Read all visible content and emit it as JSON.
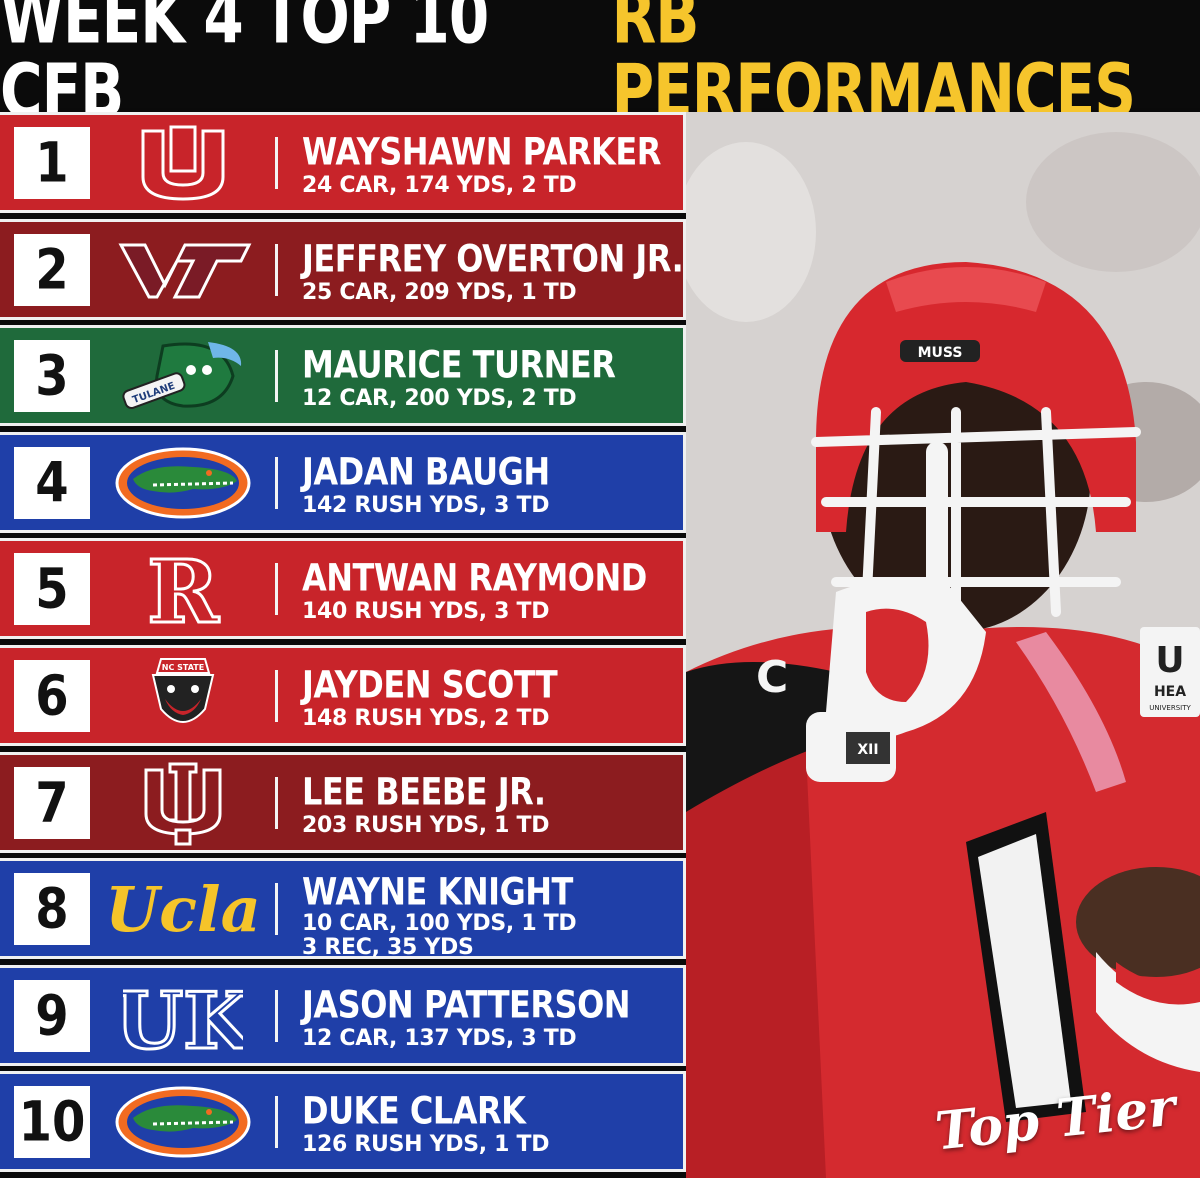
{
  "title": {
    "part1": "WEEK 4 TOP 10 CFB",
    "part2": "RB PERFORMANCES"
  },
  "colors": {
    "red": "#c8242a",
    "maroon": "#8c1c1f",
    "green": "#1f6a3b",
    "blue": "#1f3fa8",
    "gold": "#f6c52c"
  },
  "rows": [
    {
      "rank": "1",
      "logo": "utah-logo",
      "name": "WAYSHAWN PARKER",
      "stats": "24 CAR, 174 YDS, 2 TD",
      "color": "#c8242a"
    },
    {
      "rank": "2",
      "logo": "virginia-tech-logo",
      "name": "JEFFREY OVERTON JR.",
      "stats": "25 CAR, 209 YDS, 1 TD",
      "color": "#8c1c1f"
    },
    {
      "rank": "3",
      "logo": "tulane-logo",
      "logo_text": "TULANE",
      "name": "MAURICE TURNER",
      "stats": "12 CAR, 200 YDS, 2 TD",
      "color": "#1f6a3b"
    },
    {
      "rank": "4",
      "logo": "florida-gator-logo",
      "name": "JADAN BAUGH",
      "stats": "142 RUSH YDS, 3 TD",
      "color": "#1f3fa8"
    },
    {
      "rank": "5",
      "logo": "rutgers-logo",
      "logo_text": "R",
      "name": "ANTWAN RAYMOND",
      "stats": "140 RUSH YDS, 3 TD",
      "color": "#c8242a"
    },
    {
      "rank": "6",
      "logo": "nc-state-wolf-logo",
      "logo_text": "NC STATE",
      "name": "JAYDEN SCOTT",
      "stats": "148 RUSH YDS, 2 TD",
      "color": "#c8242a"
    },
    {
      "rank": "7",
      "logo": "indiana-logo",
      "name": "LEE BEEBE JR.",
      "stats": "203 RUSH YDS,  1 TD",
      "color": "#8c1c1f"
    },
    {
      "rank": "8",
      "logo": "ucla-logo",
      "logo_text": "Ucla",
      "name": "WAYNE KNIGHT",
      "stats": "10 CAR, 100 YDS, 1 TD",
      "stats2": "3 REC, 35 YDS",
      "color": "#1f3fa8"
    },
    {
      "rank": "9",
      "logo": "kentucky-logo",
      "logo_text": "UK",
      "name": "JASON PATTERSON",
      "stats": "12 CAR, 137 YDS, 3 TD",
      "color": "#1f3fa8"
    },
    {
      "rank": "10",
      "logo": "florida-gator-logo",
      "name": "DUKE CLARK",
      "stats": "126 RUSH YDS, 1 TD",
      "color": "#1f3fa8"
    }
  ],
  "photo": {
    "helmet_text": "MUSS",
    "patch_text": "XII",
    "jersey_number": "1",
    "sleeve_letter": "C",
    "badge_letter": "U",
    "badge_text": "HEA",
    "badge_sub": "UNIVERSITY"
  },
  "watermark": "Top Tier"
}
